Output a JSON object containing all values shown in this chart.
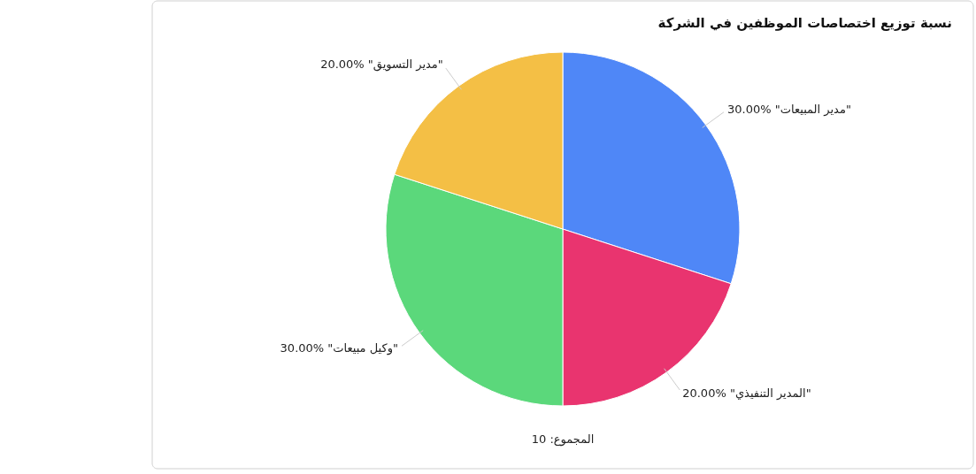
{
  "chart_data": {
    "type": "pie",
    "title": "نسبة توزيع اختصاصات الموظفين في الشركة",
    "categories": [
      "\"مدير المبيعات\"",
      "\"المدير التنفيذي\"",
      "\"وكيل مبيعات\"",
      "\"مدير التسويق\""
    ],
    "values": [
      30,
      20,
      30,
      20
    ],
    "value_labels": [
      "30.00%",
      "20.00%",
      "30.00%",
      "20.00%"
    ],
    "colors": [
      "#4f87f7",
      "#e9346f",
      "#5bd87b",
      "#f4bf45"
    ],
    "annotations": [
      "المجموع: 10"
    ]
  }
}
